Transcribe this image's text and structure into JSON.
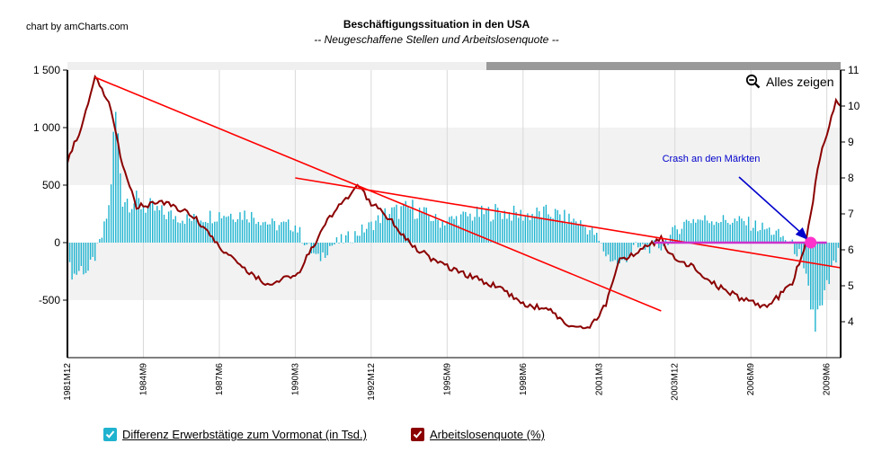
{
  "header": {
    "credit": "chart by amCharts.com",
    "title": "Beschäftigungssituation in den USA",
    "subtitle": "-- Neugeschaffene Stellen und Arbeitslosenquote --"
  },
  "toolbar": {
    "zoom_label": "Alles zeigen",
    "zoom_icon": "zoom-out-icon"
  },
  "legend": [
    {
      "label": "Differenz Erwerbstätige zum Vormonat (in Tsd.)",
      "color": "#1fb3cf",
      "icon": "check-icon"
    },
    {
      "label": "Arbeitslosenquote (%)",
      "color": "#8b0000",
      "icon": "check-icon"
    }
  ],
  "chart_data": {
    "type": "bar+line",
    "x_range": [
      "1981-12",
      "2009-12"
    ],
    "x_tick_labels": [
      "1981M12",
      "1984M9",
      "1987M6",
      "1990M3",
      "1992M12",
      "1995M9",
      "1998M6",
      "2001M3",
      "2003M12",
      "2006M9",
      "2009M6"
    ],
    "y_left": {
      "range": [
        -1000,
        1500
      ],
      "ticks": [
        -500,
        0,
        500,
        1000,
        1500
      ],
      "tick_labels": [
        "-500",
        "0",
        "500",
        "1 000",
        "1 500"
      ]
    },
    "y_right": {
      "range": [
        3,
        11
      ],
      "ticks": [
        4,
        5,
        6,
        7,
        8,
        9,
        10,
        11
      ]
    },
    "bar_series": {
      "name": "Differenz Erwerbstätige zum Vormonat (in Tsd.)",
      "color": "#1fb3cf",
      "keypoints": [
        [
          "1981-12",
          -200
        ],
        [
          "1982-03",
          -280
        ],
        [
          "1982-06",
          -220
        ],
        [
          "1982-09",
          -250
        ],
        [
          "1982-12",
          -120
        ],
        [
          "1983-03",
          50
        ],
        [
          "1983-06",
          300
        ],
        [
          "1983-09",
          1100
        ],
        [
          "1983-12",
          400
        ],
        [
          "1984-06",
          350
        ],
        [
          "1985-06",
          250
        ],
        [
          "1986-06",
          200
        ],
        [
          "1987-06",
          250
        ],
        [
          "1988-06",
          250
        ],
        [
          "1989-06",
          150
        ],
        [
          "1990-03",
          150
        ],
        [
          "1990-09",
          -50
        ],
        [
          "1991-01",
          -150
        ],
        [
          "1991-06",
          -30
        ],
        [
          "1992-03",
          50
        ],
        [
          "1992-12",
          150
        ],
        [
          "1993-06",
          250
        ],
        [
          "1994-06",
          300
        ],
        [
          "1995-06",
          180
        ],
        [
          "1996-06",
          230
        ],
        [
          "1997-06",
          270
        ],
        [
          "1998-06",
          240
        ],
        [
          "1999-06",
          260
        ],
        [
          "2000-06",
          180
        ],
        [
          "2001-01",
          80
        ],
        [
          "2001-06",
          -100
        ],
        [
          "2001-12",
          -200
        ],
        [
          "2002-06",
          -50
        ],
        [
          "2003-06",
          -30
        ],
        [
          "2003-12",
          100
        ],
        [
          "2004-06",
          200
        ],
        [
          "2005-06",
          200
        ],
        [
          "2006-06",
          180
        ],
        [
          "2007-06",
          100
        ],
        [
          "2008-01",
          20
        ],
        [
          "2008-06",
          -100
        ],
        [
          "2008-10",
          -450
        ],
        [
          "2009-01",
          -700
        ],
        [
          "2009-04",
          -600
        ],
        [
          "2009-08",
          -250
        ],
        [
          "2009-12",
          -50
        ]
      ]
    },
    "line_series": {
      "name": "Arbeitslosenquote (%)",
      "color": "#8b0000",
      "keypoints": [
        [
          "1981-12",
          8.5
        ],
        [
          "1982-06",
          9.4
        ],
        [
          "1982-12",
          10.8
        ],
        [
          "1983-06",
          10.1
        ],
        [
          "1983-12",
          8.3
        ],
        [
          "1984-06",
          7.2
        ],
        [
          "1985-06",
          7.3
        ],
        [
          "1986-06",
          7.0
        ],
        [
          "1987-06",
          6.1
        ],
        [
          "1988-06",
          5.4
        ],
        [
          "1989-03",
          5.0
        ],
        [
          "1989-09",
          5.2
        ],
        [
          "1990-03",
          5.2
        ],
        [
          "1990-09",
          5.9
        ],
        [
          "1991-06",
          6.9
        ],
        [
          "1992-06",
          7.8
        ],
        [
          "1992-12",
          7.3
        ],
        [
          "1993-06",
          7.0
        ],
        [
          "1994-06",
          6.1
        ],
        [
          "1995-06",
          5.6
        ],
        [
          "1996-06",
          5.3
        ],
        [
          "1997-06",
          5.0
        ],
        [
          "1998-06",
          4.5
        ],
        [
          "1999-06",
          4.3
        ],
        [
          "2000-04",
          3.8
        ],
        [
          "2000-12",
          3.9
        ],
        [
          "2001-06",
          4.5
        ],
        [
          "2001-12",
          5.7
        ],
        [
          "2002-06",
          5.9
        ],
        [
          "2003-06",
          6.3
        ],
        [
          "2003-12",
          5.7
        ],
        [
          "2004-06",
          5.6
        ],
        [
          "2005-06",
          5.0
        ],
        [
          "2006-06",
          4.6
        ],
        [
          "2007-03",
          4.4
        ],
        [
          "2007-09",
          4.7
        ],
        [
          "2008-03",
          5.1
        ],
        [
          "2008-09",
          6.2
        ],
        [
          "2009-03",
          8.6
        ],
        [
          "2009-08",
          9.7
        ],
        [
          "2009-10",
          10.1
        ],
        [
          "2009-12",
          10.0
        ]
      ]
    },
    "trend_lines": [
      {
        "color": "#ff0000",
        "from": [
          "1982-12",
          10.8
        ],
        "to": [
          "2003-06",
          4.3
        ]
      },
      {
        "color": "#ff0000",
        "from": [
          "1990-03",
          8.0
        ],
        "to": [
          "2009-12",
          5.5
        ]
      },
      {
        "color": "#cc33cc",
        "from": [
          "2003-03",
          6.2
        ],
        "to": [
          "2009-06",
          6.2
        ]
      }
    ],
    "marker": {
      "x": "2008-11",
      "y": 6.2,
      "color": "#ff33cc"
    },
    "annotation": {
      "text": "Crash  an den Märkten",
      "color": "#0000cc",
      "arrow_to": [
        "2008-11",
        6.2
      ]
    },
    "grid": true,
    "legend_position": "bottom-left"
  }
}
